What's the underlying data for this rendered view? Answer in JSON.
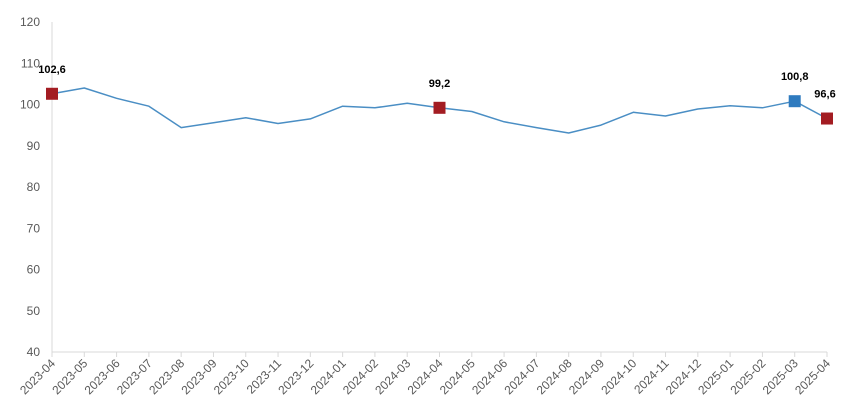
{
  "chart_data": {
    "type": "line",
    "title": "",
    "xlabel": "",
    "ylabel": "",
    "ylim": [
      40,
      120
    ],
    "yticks": [
      40,
      50,
      60,
      70,
      80,
      90,
      100,
      110,
      120
    ],
    "grid": false,
    "legend": "none",
    "categories": [
      "2023-04",
      "2023-05",
      "2023-06",
      "2023-07",
      "2023-08",
      "2023-09",
      "2023-10",
      "2023-11",
      "2023-12",
      "2024-01",
      "2024-02",
      "2024-03",
      "2024-04",
      "2024-05",
      "2024-06",
      "2024-07",
      "2024-08",
      "2024-09",
      "2024-10",
      "2024-11",
      "2024-12",
      "2025-01",
      "2025-02",
      "2025-03",
      "2025-04"
    ],
    "series": [
      {
        "values": [
          102.6,
          104.0,
          101.5,
          99.6,
          94.4,
          95.6,
          96.8,
          95.4,
          96.5,
          99.6,
          99.2,
          100.3,
          99.2,
          98.3,
          95.8,
          94.4,
          93.1,
          95.0,
          98.1,
          97.2,
          98.9,
          99.7,
          99.2,
          100.8,
          96.6
        ],
        "color": "#4a8ec4"
      }
    ],
    "highlighted_points": [
      {
        "index": 0,
        "label": "102,6",
        "color": "#a31c22"
      },
      {
        "index": 12,
        "label": "99,2",
        "color": "#a31c22"
      },
      {
        "index": 23,
        "label": "100,8",
        "color": "#2f7bbf"
      },
      {
        "index": 24,
        "label": "96,6",
        "color": "#a31c22"
      }
    ],
    "axis_color": "#d9d9d9"
  }
}
